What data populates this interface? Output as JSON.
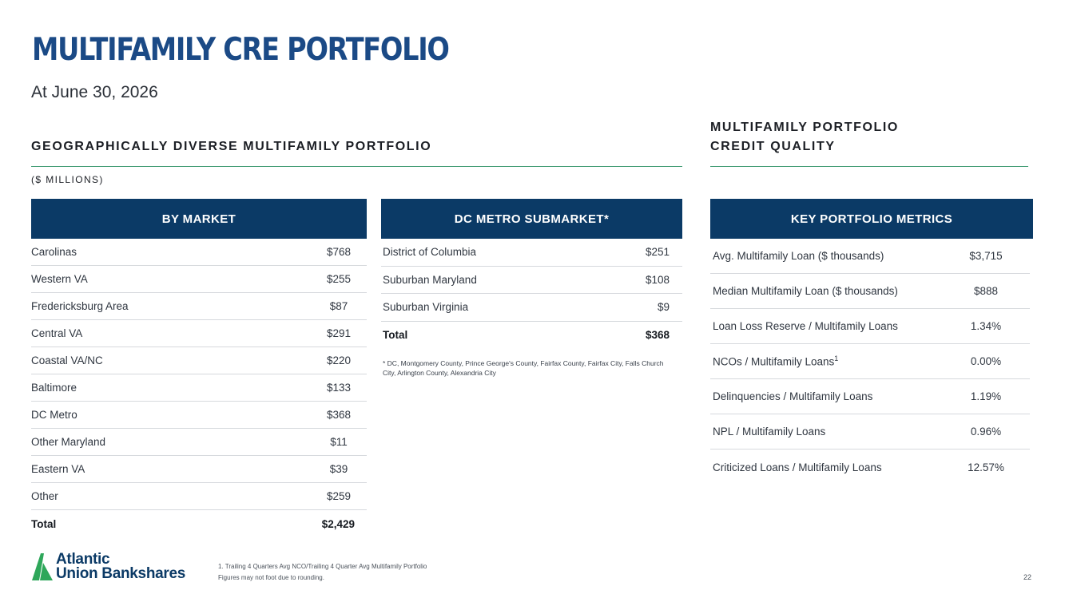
{
  "header": {
    "title": "MULTIFAMILY CRE PORTFOLIO",
    "subtitle": "At June 30, 2026"
  },
  "left_section": {
    "heading": "GEOGRAPHICALLY DIVERSE MULTIFAMILY PORTFOLIO",
    "units": "($ MILLIONS)"
  },
  "right_section": {
    "heading_line1": "MULTIFAMILY PORTFOLIO",
    "heading_line2": "CREDIT QUALITY"
  },
  "by_market": {
    "header": "BY MARKET",
    "rows": [
      {
        "label": "Carolinas",
        "value": "$768"
      },
      {
        "label": "Western VA",
        "value": "$255"
      },
      {
        "label": "Fredericksburg Area",
        "value": "$87"
      },
      {
        "label": "Central VA",
        "value": "$291"
      },
      {
        "label": "Coastal VA/NC",
        "value": "$220"
      },
      {
        "label": "Baltimore",
        "value": "$133"
      },
      {
        "label": "DC Metro",
        "value": "$368"
      },
      {
        "label": "Other Maryland",
        "value": "$11"
      },
      {
        "label": "Eastern VA",
        "value": "$39"
      },
      {
        "label": "Other",
        "value": "$259"
      }
    ],
    "total": {
      "label": "Total",
      "value": "$2,429"
    }
  },
  "dc_submarket": {
    "header": "DC METRO SUBMARKET*",
    "rows": [
      {
        "label": "District of Columbia",
        "value": "$251"
      },
      {
        "label": "Suburban Maryland",
        "value": "$108"
      },
      {
        "label": "Suburban Virginia",
        "value": "$9"
      }
    ],
    "total": {
      "label": "Total",
      "value": "$368"
    },
    "note": "* DC, Montgomery County, Prince George's County, Fairfax County, Fairfax City, Falls Church City, Arlington County, Alexandria City"
  },
  "key_metrics": {
    "header": "KEY PORTFOLIO METRICS",
    "rows": [
      {
        "label": "Avg. Multifamily Loan ($ thousands)",
        "value": "$3,715"
      },
      {
        "label": "Median Multifamily Loan ($ thousands)",
        "value": "$888"
      },
      {
        "label": "Loan Loss Reserve / Multifamily Loans",
        "value": "1.34%"
      },
      {
        "label": "NCOs / Multifamily Loans",
        "sup": "1",
        "value": "0.00%"
      },
      {
        "label": "Delinquencies / Multifamily Loans",
        "value": "1.19%"
      },
      {
        "label": "NPL / Multifamily Loans",
        "value": "0.96%"
      },
      {
        "label": "Criticized Loans / Multifamily Loans",
        "value": "12.57%"
      }
    ]
  },
  "footer": {
    "logo_line1": "Atlantic",
    "logo_line2": "Union Bankshares",
    "footnote1": "1. Trailing 4 Quarters Avg NCO/Trailing 4 Quarter Avg Multifamily Portfolio",
    "footnote2": "Figures may not foot due to rounding.",
    "page_number": "22"
  },
  "colors": {
    "title": "#1b4a86",
    "panel_header": "#0b3a66",
    "rule": "#3f9b72",
    "logo_green": "#2ea75a"
  },
  "icons": {
    "logo": "atlantic-union-mountain-logo-icon"
  }
}
